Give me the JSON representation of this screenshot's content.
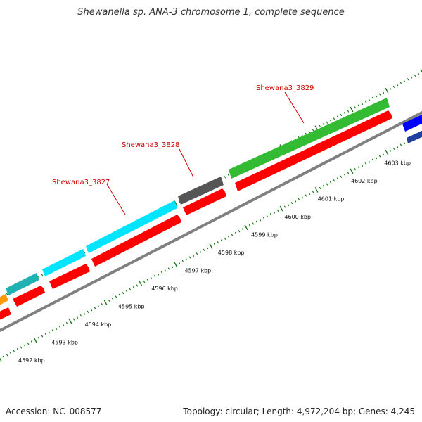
{
  "title": "Shewanella sp. ANA-3 chromosome 1, complete sequence",
  "footer": {
    "accession": "Accession: NC_008577",
    "summary": "Topology: circular; Length: 4,972,204 bp; Genes: 4,245"
  },
  "scale_labels": [
    "4592 kbp",
    "4593 kbp",
    "4594 kbp",
    "4595 kbp",
    "4596 kbp",
    "4597 kbp",
    "4598 kbp",
    "4599 kbp",
    "4600 kbp",
    "4601 kbp",
    "4602 kbp",
    "4603 kbp"
  ],
  "gene_labels": [
    "Shewana3_3827",
    "Shewana3_3828",
    "Shewana3_3829"
  ],
  "colors": {
    "backbone": "#808080",
    "cds": "#ff0000",
    "gene_cyan": "#00e5ff",
    "gene_teal": "#20b2b2",
    "gene_dark": "#555555",
    "gene_green": "#33bb33",
    "gene_blue": "#0000ff",
    "gene_orange": "#ff9900",
    "tick": "#1a7a1a",
    "label": "#cc0000"
  }
}
